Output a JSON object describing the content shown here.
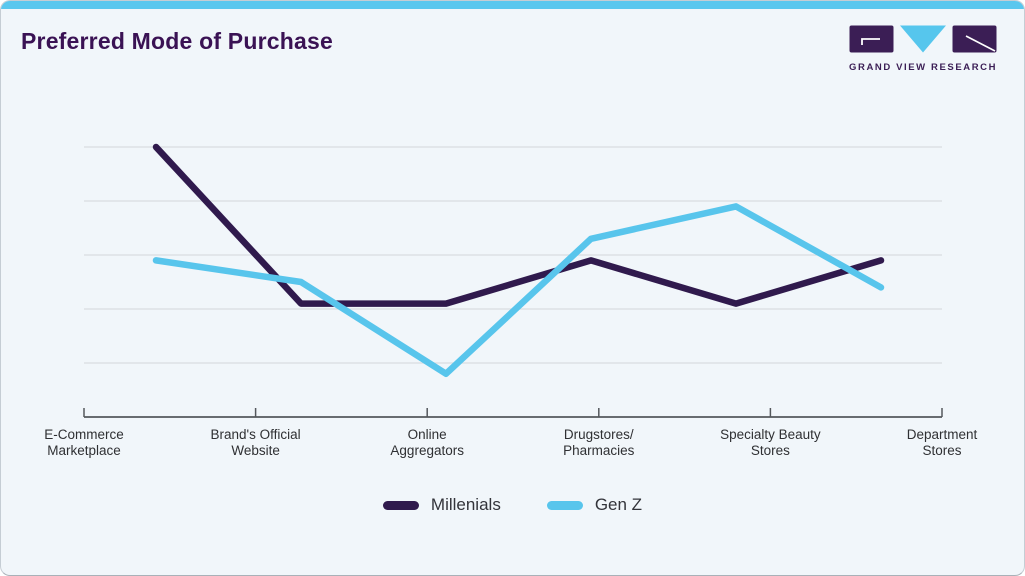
{
  "page": {
    "title": "Preferred Mode of Purchase"
  },
  "logo": {
    "text": "GRAND VIEW RESEARCH",
    "purple": "#3b1e55",
    "blue": "#56c6ed"
  },
  "theme": {
    "card_bg": "#f1f6fa",
    "accent_bar": "#5ac7ee",
    "title_color": "#3a1254"
  },
  "chart_data": {
    "type": "line",
    "title": "Preferred Mode of Purchase",
    "categories": [
      "E-Commerce\nMarketplace",
      "Brand's Official\nWebsite",
      "Online\nAggregators",
      "Drugstores/\nPharmacies",
      "Specialty Beauty\nStores",
      "Department\nStores"
    ],
    "series": [
      {
        "name": "Millenials",
        "color": "#301a4d",
        "values": [
          50,
          21,
          21,
          29,
          21,
          29
        ]
      },
      {
        "name": "Gen Z",
        "color": "#58c5ec",
        "values": [
          29,
          25,
          8,
          33,
          39,
          24
        ]
      }
    ],
    "ylim": [
      0,
      55
    ],
    "gridline_values": [
      10,
      20,
      30,
      40,
      50
    ],
    "y_tick_labels_visible": false,
    "grid": "horizontal",
    "legend_position": "bottom",
    "colors": {
      "gridline": "#d9dde1",
      "axis": "#54585c",
      "label": "#2f3033"
    }
  }
}
